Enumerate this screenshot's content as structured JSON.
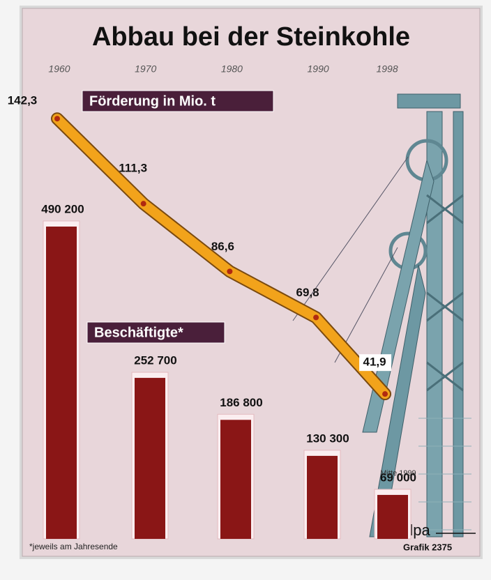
{
  "chart_data": {
    "type": "combo",
    "title": "Abbau bei der Steinkohle",
    "x": [
      1960,
      1970,
      1980,
      1990,
      1998
    ],
    "series": [
      {
        "name": "Beschäftigte*",
        "type": "bar",
        "color": "#8a1616",
        "values": [
          490200,
          252700,
          186800,
          130300,
          69000
        ],
        "value_labels": [
          "490 200",
          "252 700",
          "186 800",
          "130 300",
          "69 000"
        ]
      },
      {
        "name": "Förderung in Mio. t",
        "type": "line",
        "color": "#f2a31b",
        "values": [
          142.3,
          111.3,
          86.6,
          69.8,
          41.9
        ],
        "value_labels": [
          "142,3",
          "111,3",
          "86,6",
          "69,8",
          "41,9"
        ]
      }
    ],
    "annotation": "Mitte 1999",
    "footnote": "*jeweils am Jahresende",
    "source": "dpa",
    "credit": "Grafik 2375"
  }
}
